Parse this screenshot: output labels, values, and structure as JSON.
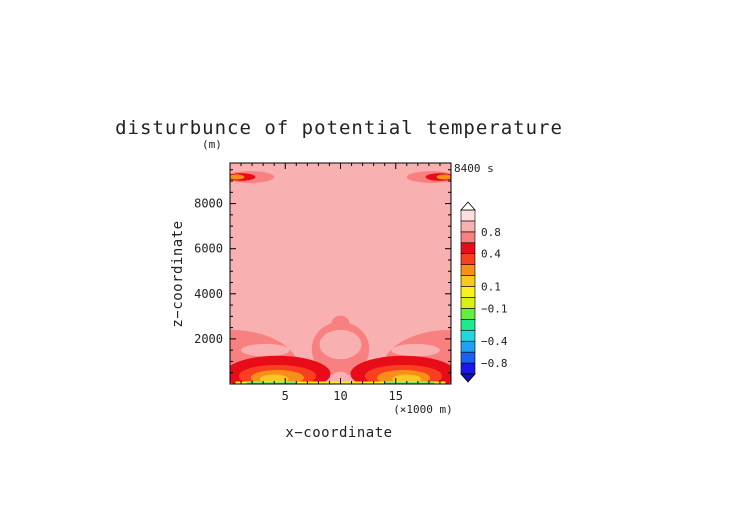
{
  "chart_data": {
    "type": "heatmap",
    "title": "disturbunce of potential temperature",
    "time_label": "8400 s",
    "xlabel": "x−coordinate",
    "ylabel": "z−coordinate",
    "x_units": "(×1000 m)",
    "y_units": "(m)",
    "xlim": [
      0,
      20
    ],
    "ylim": [
      0,
      9800
    ],
    "x_ticks": [
      5,
      10,
      15
    ],
    "x_tick_labels": [
      "5",
      "10",
      "15"
    ],
    "y_ticks": [
      2000,
      4000,
      6000,
      8000
    ],
    "y_tick_labels": [
      "2000",
      "4000",
      "6000",
      "8000"
    ],
    "colorbar": {
      "levels": [
        -1.0,
        -0.8,
        -0.6,
        -0.4,
        -0.3,
        -0.2,
        -0.1,
        0.0,
        0.1,
        0.2,
        0.3,
        0.4,
        0.6,
        0.8,
        1.0
      ],
      "colors": [
        "#1818e8",
        "#1c60f0",
        "#20a0f8",
        "#20d8e0",
        "#20e890",
        "#60f040",
        "#d8f018",
        "#f8f020",
        "#f8c820",
        "#f89018",
        "#f84020",
        "#e80c18",
        "#f88080",
        "#f8b0b0",
        "#fce0e0"
      ],
      "tick_labels": [
        {
          "value": 0.8,
          "label": "0.8"
        },
        {
          "value": 0.4,
          "label": "0.4"
        },
        {
          "value": 0.1,
          "label": "0.1"
        },
        {
          "value": -0.1,
          "label": "−0.1"
        },
        {
          "value": -0.4,
          "label": "−0.4"
        },
        {
          "value": -0.8,
          "label": "−0.8"
        }
      ],
      "extend": "both"
    },
    "background_value": 0.9,
    "regions": [
      {
        "shape": "ellipse",
        "cx": 1.8,
        "cy": 9180,
        "rx": 2.2,
        "ry": 260,
        "value": 0.7
      },
      {
        "shape": "ellipse",
        "cx": 1.0,
        "cy": 9180,
        "rx": 1.3,
        "ry": 170,
        "value": 0.45
      },
      {
        "shape": "ellipse",
        "cx": 0.6,
        "cy": 9180,
        "rx": 0.7,
        "ry": 110,
        "value": 0.2
      },
      {
        "shape": "ellipse",
        "cx": 18.2,
        "cy": 9180,
        "rx": 2.2,
        "ry": 260,
        "value": 0.7
      },
      {
        "shape": "ellipse",
        "cx": 19.0,
        "cy": 9180,
        "rx": 1.3,
        "ry": 170,
        "value": 0.45
      },
      {
        "shape": "ellipse",
        "cx": 19.4,
        "cy": 9180,
        "rx": 0.7,
        "ry": 110,
        "value": 0.2
      },
      {
        "shape": "ellipse",
        "cx": 0.0,
        "cy": 700,
        "rx": 6.2,
        "ry": 1700,
        "value": 0.7
      },
      {
        "shape": "ellipse",
        "cx": 20.0,
        "cy": 700,
        "rx": 6.2,
        "ry": 1700,
        "value": 0.7
      },
      {
        "shape": "ellipse",
        "cx": 10.0,
        "cy": 1550,
        "rx": 2.6,
        "ry": 1200,
        "value": 0.7
      },
      {
        "shape": "ellipse",
        "cx": 10.0,
        "cy": 2700,
        "rx": 0.8,
        "ry": 330,
        "value": 0.7
      },
      {
        "shape": "ellipse",
        "cx": 3.2,
        "cy": 1500,
        "rx": 2.2,
        "ry": 280,
        "value": 0.9
      },
      {
        "shape": "ellipse",
        "cx": 16.8,
        "cy": 1500,
        "rx": 2.2,
        "ry": 280,
        "value": 0.9
      },
      {
        "shape": "ellipse",
        "cx": 10.0,
        "cy": 1750,
        "rx": 1.9,
        "ry": 650,
        "value": 0.9
      },
      {
        "shape": "ellipse",
        "cx": 4.3,
        "cy": 450,
        "rx": 4.8,
        "ry": 800,
        "value": 0.5
      },
      {
        "shape": "ellipse",
        "cx": 15.7,
        "cy": 450,
        "rx": 4.8,
        "ry": 800,
        "value": 0.5
      },
      {
        "shape": "ellipse",
        "cx": 4.3,
        "cy": 350,
        "rx": 3.5,
        "ry": 500,
        "value": 0.35
      },
      {
        "shape": "ellipse",
        "cx": 15.7,
        "cy": 350,
        "rx": 3.5,
        "ry": 500,
        "value": 0.35
      },
      {
        "shape": "ellipse",
        "cx": 4.3,
        "cy": 280,
        "rx": 2.4,
        "ry": 340,
        "value": 0.25
      },
      {
        "shape": "ellipse",
        "cx": 15.7,
        "cy": 280,
        "rx": 2.4,
        "ry": 340,
        "value": 0.25
      },
      {
        "shape": "ellipse",
        "cx": 4.0,
        "cy": 220,
        "rx": 1.3,
        "ry": 200,
        "value": 0.15
      },
      {
        "shape": "ellipse",
        "cx": 16.0,
        "cy": 220,
        "rx": 1.3,
        "ry": 200,
        "value": 0.15
      },
      {
        "shape": "ellipse",
        "cx": 10.0,
        "cy": 330,
        "rx": 0.7,
        "ry": 220,
        "value": 0.9
      },
      {
        "shape": "rect",
        "x0": 0.5,
        "x1": 19.5,
        "y0": 0,
        "y1": 110,
        "value": 0.05
      },
      {
        "shape": "rect",
        "x0": 1.5,
        "x1": 6.0,
        "y0": 0,
        "y1": 70,
        "value": -0.25
      },
      {
        "shape": "rect",
        "x0": 14.0,
        "x1": 18.5,
        "y0": 0,
        "y1": 70,
        "value": -0.25
      }
    ]
  }
}
